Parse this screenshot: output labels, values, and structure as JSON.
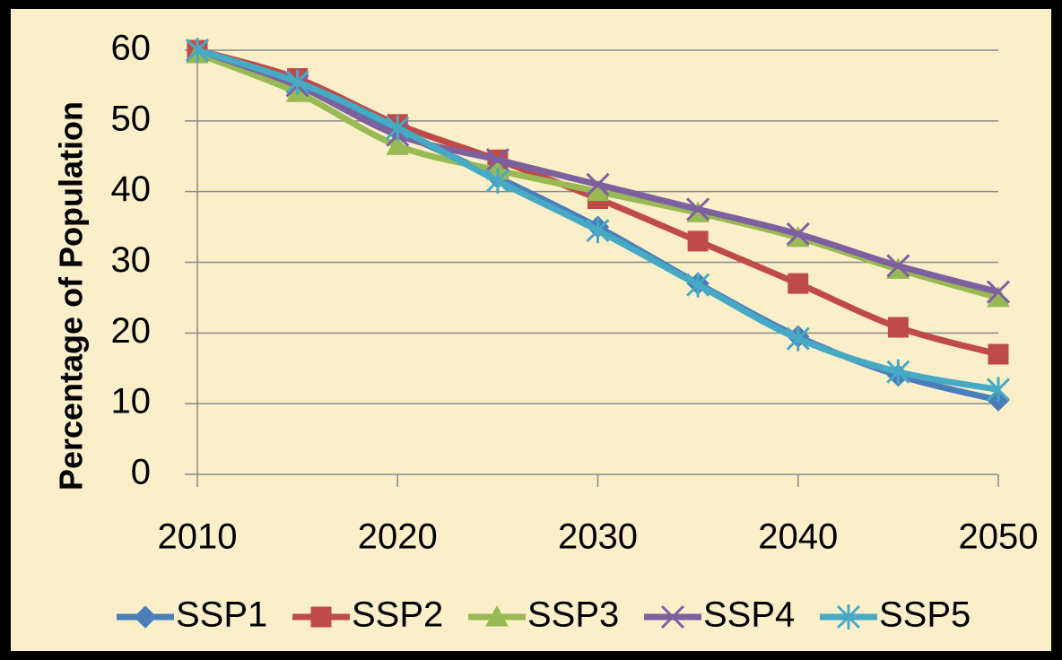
{
  "chart_data": {
    "type": "line",
    "ylabel": "Percentage of Population",
    "x": [
      2010,
      2015,
      2020,
      2025,
      2030,
      2035,
      2040,
      2045,
      2050
    ],
    "xlim": [
      2010,
      2050
    ],
    "xticks": [
      2010,
      2020,
      2030,
      2040,
      2050
    ],
    "ylim": [
      0,
      60
    ],
    "yticks": [
      0,
      10,
      20,
      30,
      40,
      50,
      60
    ],
    "grid": true,
    "legend": "bottom",
    "series": [
      {
        "name": "SSP1",
        "color": "#4a7ebb",
        "marker": "diamond",
        "values": [
          60,
          55,
          48.5,
          42,
          35,
          27,
          19.5,
          14,
          10.5
        ]
      },
      {
        "name": "SSP2",
        "color": "#be4b48",
        "marker": "square",
        "values": [
          60,
          56,
          49.5,
          44.5,
          39,
          33,
          27,
          20.8,
          17
        ]
      },
      {
        "name": "SSP3",
        "color": "#98b954",
        "marker": "triangle",
        "values": [
          59.5,
          54,
          46.5,
          43,
          40,
          37,
          33.5,
          29,
          25
        ]
      },
      {
        "name": "SSP4",
        "color": "#7d60a0",
        "marker": "x",
        "values": [
          60,
          55,
          48,
          44.5,
          41,
          37.5,
          34,
          29.5,
          25.8
        ]
      },
      {
        "name": "SSP5",
        "color": "#46aac5",
        "marker": "star",
        "values": [
          60,
          55.5,
          49,
          41.5,
          34.5,
          26.8,
          19.2,
          14.5,
          12
        ]
      }
    ]
  }
}
